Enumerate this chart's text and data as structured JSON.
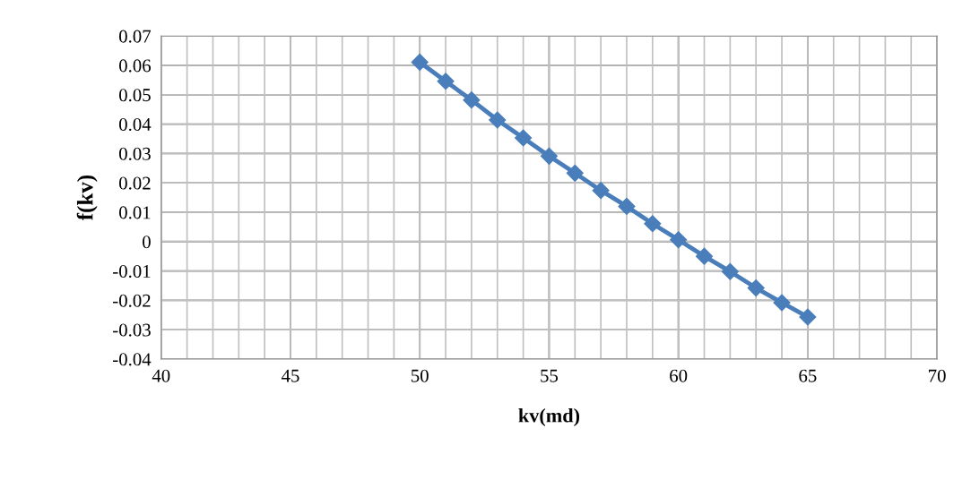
{
  "chart_data": {
    "type": "line",
    "xlabel": "kv(md)",
    "ylabel": "f(kv)",
    "x": [
      50,
      51,
      52,
      53,
      54,
      55,
      56,
      57,
      58,
      59,
      60,
      61,
      62,
      63,
      64,
      65
    ],
    "series": [
      {
        "color": "#4a7ebb",
        "values": [
          0.0611,
          0.0546,
          0.0482,
          0.0414,
          0.0353,
          0.0291,
          0.0233,
          0.0174,
          0.012,
          0.0061,
          0.0006,
          -0.005,
          -0.0102,
          -0.0158,
          -0.0208,
          -0.0257
        ]
      }
    ],
    "marker": "diamond",
    "line_style": "solid",
    "grid": true,
    "legend": false,
    "xlim": [
      40,
      70
    ],
    "xticks": [
      40,
      {
        "value": 41,
        "label": null
      },
      {
        "value": 42,
        "label": null
      },
      {
        "value": 43,
        "label": null
      },
      {
        "value": 44,
        "label": null
      },
      45,
      {
        "value": 46,
        "label": null
      },
      {
        "value": 47,
        "label": null
      },
      {
        "value": 48,
        "label": null
      },
      {
        "value": 49,
        "label": null
      },
      50,
      {
        "value": 51,
        "label": null
      },
      {
        "value": 52,
        "label": null
      },
      {
        "value": 53,
        "label": null
      },
      {
        "value": 54,
        "label": null
      },
      55,
      {
        "value": 56,
        "label": null
      },
      {
        "value": 57,
        "label": null
      },
      {
        "value": 58,
        "label": null
      },
      {
        "value": 59,
        "label": null
      },
      60,
      {
        "value": 61,
        "label": null
      },
      {
        "value": 62,
        "label": null
      },
      {
        "value": 63,
        "label": null
      },
      {
        "value": 64,
        "label": null
      },
      65,
      {
        "value": 66,
        "label": null
      },
      {
        "value": 67,
        "label": null
      },
      {
        "value": 68,
        "label": null
      },
      {
        "value": 69,
        "label": null
      },
      70
    ],
    "ylim": [
      -0.04,
      0.07
    ],
    "yticks": [
      {
        "value": -0.04,
        "label": "-0.04"
      },
      {
        "value": -0.03,
        "label": "-0.03"
      },
      {
        "value": -0.02,
        "label": "-0.02"
      },
      {
        "value": -0.01,
        "label": "-0.01"
      },
      0,
      0.01,
      0.02,
      0.03,
      0.04,
      0.05,
      0.06,
      0.07
    ]
  }
}
